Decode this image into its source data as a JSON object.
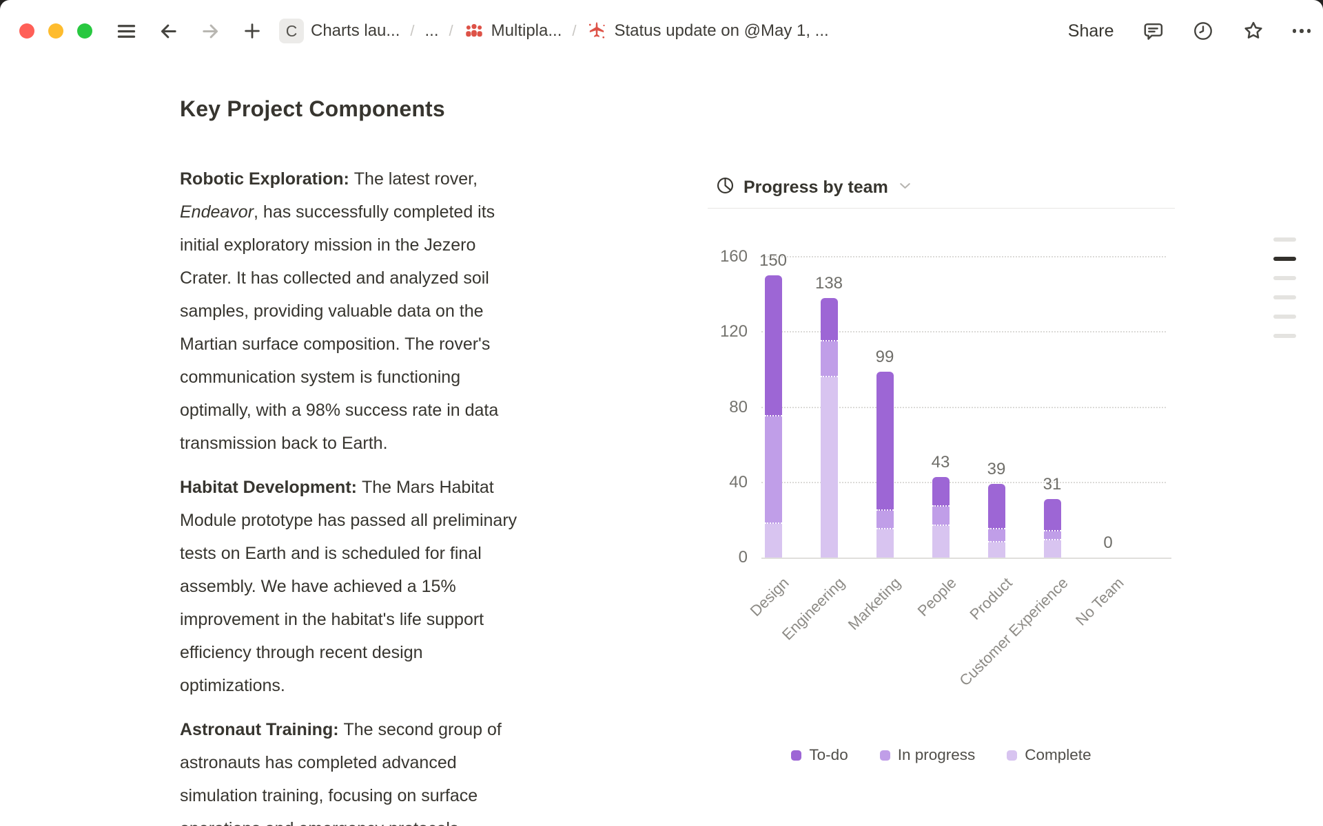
{
  "toolbar": {
    "share_label": "Share",
    "breadcrumb": {
      "separator": "/",
      "items": [
        {
          "label": "Charts lau...",
          "icon": "c-badge",
          "badge_letter": "C"
        },
        {
          "label": "..."
        },
        {
          "label": "Multipla...",
          "icon": "people-icon"
        },
        {
          "label": "Status update on @May 1, ...",
          "icon": "plane-icon"
        }
      ]
    },
    "colors": {
      "close": "#ff5f57",
      "minimize": "#febc2e",
      "zoom": "#28c840",
      "icon": "#45443f",
      "forward_disabled": "#b8b6b1"
    }
  },
  "document": {
    "title": "Key Project Components",
    "paragraphs": [
      {
        "lines": [
          [
            {
              "t": "Robotic Exploration: ",
              "b": true
            },
            {
              "t": "The latest rover,"
            }
          ],
          [
            {
              "t": "Endeavor",
              "i": true
            },
            {
              "t": ", has successfully completed its"
            }
          ],
          [
            {
              "t": "initial exploratory mission in the Jezero"
            }
          ],
          [
            {
              "t": "Crater. It has collected and analyzed soil"
            }
          ],
          [
            {
              "t": "samples, providing valuable data on the"
            }
          ],
          [
            {
              "t": "Martian surface composition. The rover's"
            }
          ],
          [
            {
              "t": "communication system is functioning"
            }
          ],
          [
            {
              "t": "optimally, with a 98% success rate in data"
            }
          ],
          [
            {
              "t": "transmission back to Earth."
            }
          ]
        ]
      },
      {
        "lines": [
          [
            {
              "t": "Habitat Development: ",
              "b": true
            },
            {
              "t": "The Mars Habitat"
            }
          ],
          [
            {
              "t": "Module prototype has passed all preliminary"
            }
          ],
          [
            {
              "t": "tests on Earth and is scheduled for final"
            }
          ],
          [
            {
              "t": "assembly. We have achieved a 15%"
            }
          ],
          [
            {
              "t": "improvement in the habitat's life support"
            }
          ],
          [
            {
              "t": "efficiency through recent design"
            }
          ],
          [
            {
              "t": "optimizations."
            }
          ]
        ]
      },
      {
        "lines": [
          [
            {
              "t": "Astronaut Training: ",
              "b": true
            },
            {
              "t": "The second group of"
            }
          ],
          [
            {
              "t": "astronauts has completed advanced"
            }
          ],
          [
            {
              "t": "simulation training, focusing on surface"
            }
          ],
          [
            {
              "t": "operations and emergency protocols"
            }
          ]
        ]
      }
    ]
  },
  "chart": {
    "header": {
      "title": "Progress by team",
      "icon": "pie-chart-icon",
      "chevron": "chevron-down-icon"
    }
  },
  "chart_data": {
    "type": "bar",
    "stacked": true,
    "title": "Progress by team",
    "categories": [
      "Design",
      "Engineering",
      "Marketing",
      "People",
      "Product",
      "Customer Experience",
      "No Team"
    ],
    "series": [
      {
        "name": "To-do",
        "color": "#9d66d5",
        "values": [
          75,
          23,
          74,
          16,
          24,
          17,
          0
        ]
      },
      {
        "name": "In progress",
        "color": "#c09ee8",
        "values": [
          57,
          19,
          10,
          10,
          7,
          5,
          0
        ]
      },
      {
        "name": "Complete",
        "color": "#d8c4f0",
        "values": [
          18,
          96,
          15,
          17,
          8,
          9,
          0
        ]
      }
    ],
    "stack_order_bottom_to_top": [
      "Complete",
      "In progress",
      "To-do"
    ],
    "totals": [
      150,
      138,
      99,
      43,
      39,
      31,
      0
    ],
    "y_ticks": [
      0,
      40,
      80,
      120,
      160
    ],
    "ylim": [
      0,
      160
    ],
    "grid": "dotted-horizontal",
    "legend_position": "bottom"
  },
  "outline_indicator": {
    "lines": 6,
    "active_index": 1
  }
}
